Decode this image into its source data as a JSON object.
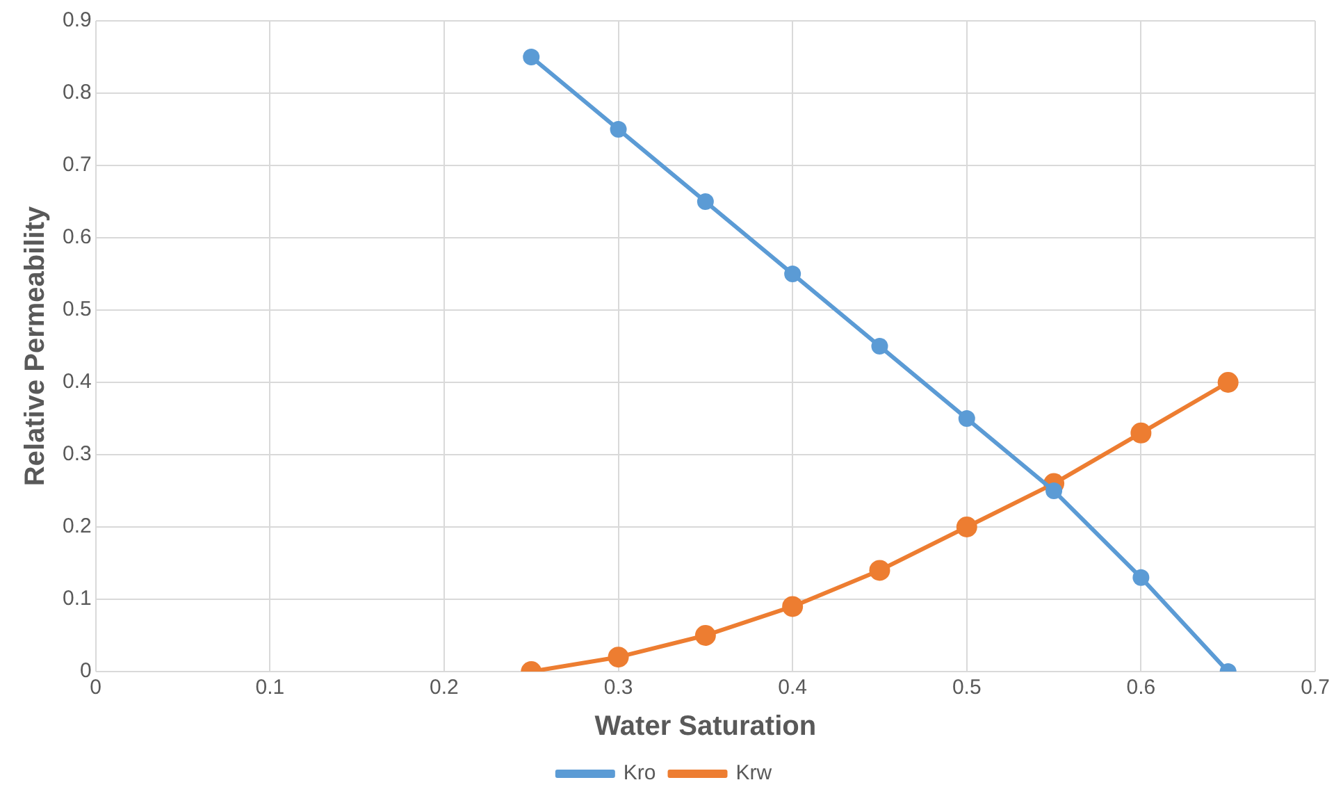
{
  "chart_data": {
    "type": "line",
    "xlabel": "Water Saturation",
    "ylabel": "Relative Permeability",
    "x": [
      0.25,
      0.3,
      0.35,
      0.4,
      0.45,
      0.5,
      0.55,
      0.6,
      0.65
    ],
    "series": [
      {
        "name": "Kro",
        "color": "#5b9bd5",
        "values": [
          0.85,
          0.75,
          0.65,
          0.55,
          0.45,
          0.35,
          0.25,
          0.13,
          0
        ]
      },
      {
        "name": "Krw",
        "color": "#ed7d31",
        "values": [
          0,
          0.02,
          0.05,
          0.09,
          0.14,
          0.2,
          0.26,
          0.33,
          0.4
        ]
      }
    ],
    "xlim": [
      0,
      0.7
    ],
    "xticks": [
      0,
      0.1,
      0.2,
      0.3,
      0.4,
      0.5,
      0.6,
      0.7
    ],
    "ylim": [
      0,
      0.9
    ],
    "yticks": [
      0,
      0.1,
      0.2,
      0.3,
      0.4,
      0.5,
      0.6,
      0.7,
      0.8,
      0.9
    ],
    "grid": true,
    "legend": "bottom",
    "marker": "circle",
    "line_style": "solid"
  }
}
